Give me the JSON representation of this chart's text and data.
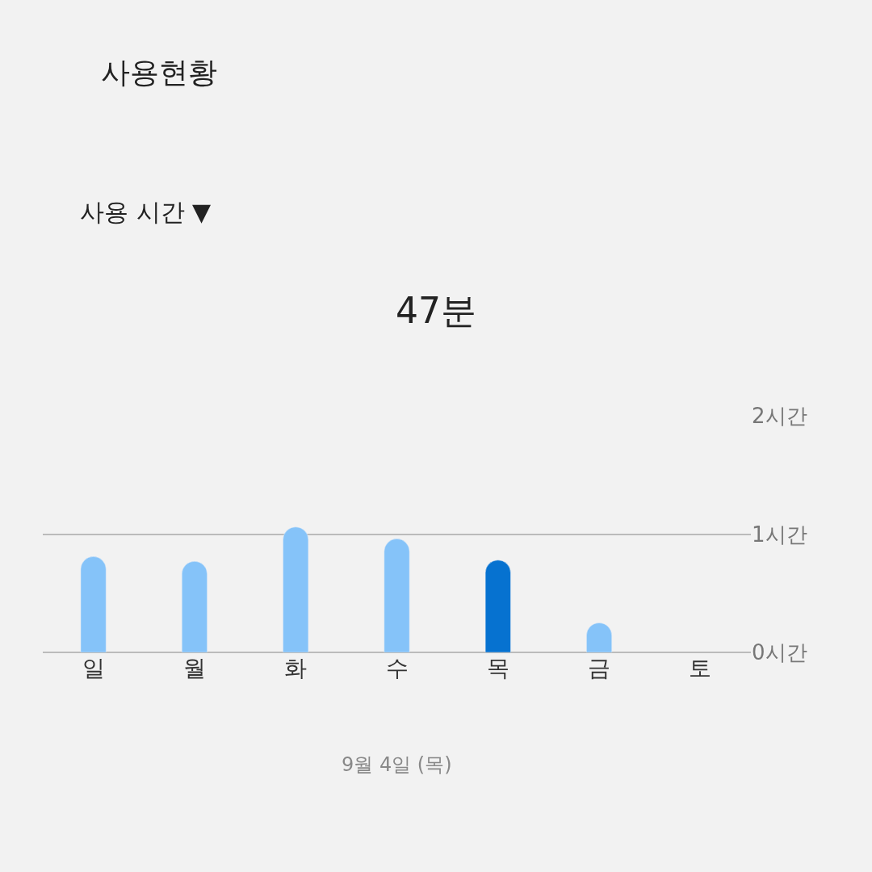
{
  "chart_data": {
    "type": "bar",
    "title": "47분",
    "annotations": [
      "사용현황",
      "사용 시간 ▼",
      "9월 4일 (목)"
    ],
    "categories": [
      "일",
      "월",
      "화",
      "수",
      "목",
      "금",
      "토"
    ],
    "values": [
      0.81,
      0.77,
      1.06,
      0.96,
      0.78,
      0.25,
      null
    ],
    "colors": [
      "#85c3f9",
      "#85c3f9",
      "#85c3f9",
      "#85c3f9",
      "#0672d0",
      "#85c3f9",
      "#85c3f9"
    ],
    "ylim": [
      0,
      2
    ],
    "yticks": [
      {
        "value": 0,
        "label": "0시간"
      },
      {
        "value": 1,
        "label": "1시간"
      },
      {
        "value": 2,
        "label": "2시간"
      }
    ],
    "grid": "y"
  }
}
